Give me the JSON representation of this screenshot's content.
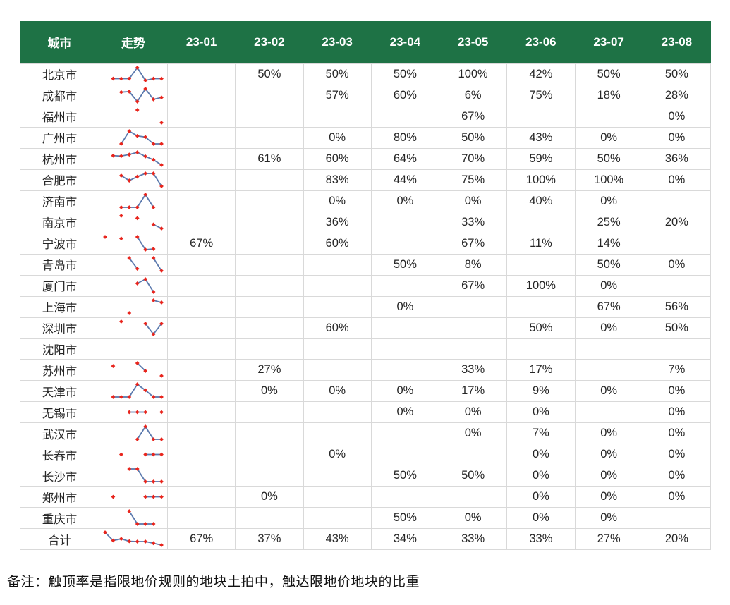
{
  "table": {
    "columns": [
      "城市",
      "走势",
      "23-01",
      "23-02",
      "23-03",
      "23-04",
      "23-05",
      "23-06",
      "23-07",
      "23-08"
    ],
    "rows": [
      {
        "city": "北京市",
        "values": [
          "",
          "50%",
          "50%",
          "50%",
          "100%",
          "42%",
          "50%",
          "50%"
        ]
      },
      {
        "city": "成都市",
        "values": [
          "",
          "",
          "57%",
          "60%",
          "6%",
          "75%",
          "18%",
          "28%"
        ]
      },
      {
        "city": "福州市",
        "values": [
          "",
          "",
          "",
          "",
          "67%",
          "",
          "",
          "0%"
        ]
      },
      {
        "city": "广州市",
        "values": [
          "",
          "",
          "0%",
          "80%",
          "50%",
          "43%",
          "0%",
          "0%"
        ]
      },
      {
        "city": "杭州市",
        "values": [
          "",
          "61%",
          "60%",
          "64%",
          "70%",
          "59%",
          "50%",
          "36%"
        ]
      },
      {
        "city": "合肥市",
        "values": [
          "",
          "",
          "83%",
          "44%",
          "75%",
          "100%",
          "100%",
          "0%"
        ]
      },
      {
        "city": "济南市",
        "values": [
          "",
          "",
          "0%",
          "0%",
          "0%",
          "40%",
          "0%",
          ""
        ]
      },
      {
        "city": "南京市",
        "values": [
          "",
          "",
          "36%",
          "",
          "33%",
          "",
          "25%",
          "20%"
        ]
      },
      {
        "city": "宁波市",
        "values": [
          "67%",
          "",
          "60%",
          "",
          "67%",
          "11%",
          "14%",
          ""
        ]
      },
      {
        "city": "青岛市",
        "values": [
          "",
          "",
          "",
          "50%",
          "8%",
          "",
          "50%",
          "0%"
        ]
      },
      {
        "city": "厦门市",
        "values": [
          "",
          "",
          "",
          "",
          "67%",
          "100%",
          "0%",
          ""
        ]
      },
      {
        "city": "上海市",
        "values": [
          "",
          "",
          "",
          "0%",
          "",
          "",
          "67%",
          "56%"
        ]
      },
      {
        "city": "深圳市",
        "values": [
          "",
          "",
          "60%",
          "",
          "",
          "50%",
          "0%",
          "50%"
        ]
      },
      {
        "city": "沈阳市",
        "values": [
          "",
          "",
          "",
          "",
          "",
          "",
          "",
          ""
        ]
      },
      {
        "city": "苏州市",
        "values": [
          "",
          "27%",
          "",
          "",
          "33%",
          "17%",
          "",
          "7%"
        ]
      },
      {
        "city": "天津市",
        "values": [
          "",
          "0%",
          "0%",
          "0%",
          "17%",
          "9%",
          "0%",
          "0%"
        ]
      },
      {
        "city": "无锡市",
        "values": [
          "",
          "",
          "",
          "0%",
          "0%",
          "0%",
          "",
          "0%"
        ]
      },
      {
        "city": "武汉市",
        "values": [
          "",
          "",
          "",
          "",
          "0%",
          "7%",
          "0%",
          "0%"
        ]
      },
      {
        "city": "长春市",
        "values": [
          "",
          "",
          "0%",
          "",
          "",
          "0%",
          "0%",
          "0%"
        ]
      },
      {
        "city": "长沙市",
        "values": [
          "",
          "",
          "",
          "50%",
          "50%",
          "0%",
          "0%",
          "0%"
        ]
      },
      {
        "city": "郑州市",
        "values": [
          "",
          "0%",
          "",
          "",
          "",
          "0%",
          "0%",
          "0%"
        ]
      },
      {
        "city": "重庆市",
        "values": [
          "",
          "",
          "",
          "50%",
          "0%",
          "0%",
          "0%",
          ""
        ]
      },
      {
        "city": "合计",
        "values": [
          "67%",
          "37%",
          "43%",
          "34%",
          "33%",
          "33%",
          "27%",
          "20%"
        ]
      }
    ]
  },
  "note": "备注：触顶率是指限地价规则的地块土拍中，触达限地价地块的比重",
  "colors": {
    "header_bg": "#1E7245",
    "header_text": "#FFFFFF",
    "gridline": "#D9D9D9",
    "body_text": "#262626",
    "sparkline_line": "#5B79AD",
    "sparkline_marker": "#E8251D"
  },
  "chart_data": {
    "type": "table",
    "title": "",
    "columns": [
      "城市",
      "走势",
      "23-01",
      "23-02",
      "23-03",
      "23-04",
      "23-05",
      "23-06",
      "23-07",
      "23-08"
    ],
    "unit": "percent",
    "sparkline_note": "走势 column shows an 8-slot sparkline (months 23-01..23-08) of each row's values, per-row min-max y-scaling, gaps where no data",
    "rows": [
      {
        "city": "北京市",
        "values": [
          null,
          50,
          50,
          50,
          100,
          42,
          50,
          50
        ]
      },
      {
        "city": "成都市",
        "values": [
          null,
          null,
          57,
          60,
          6,
          75,
          18,
          28
        ]
      },
      {
        "city": "福州市",
        "values": [
          null,
          null,
          null,
          null,
          67,
          null,
          null,
          0
        ]
      },
      {
        "city": "广州市",
        "values": [
          null,
          null,
          0,
          80,
          50,
          43,
          0,
          0
        ]
      },
      {
        "city": "杭州市",
        "values": [
          null,
          61,
          60,
          64,
          70,
          59,
          50,
          36
        ]
      },
      {
        "city": "合肥市",
        "values": [
          null,
          null,
          83,
          44,
          75,
          100,
          100,
          0
        ]
      },
      {
        "city": "济南市",
        "values": [
          null,
          null,
          0,
          0,
          0,
          40,
          0,
          null
        ]
      },
      {
        "city": "南京市",
        "values": [
          null,
          null,
          36,
          null,
          33,
          null,
          25,
          20
        ]
      },
      {
        "city": "宁波市",
        "values": [
          67,
          null,
          60,
          null,
          67,
          11,
          14,
          null
        ]
      },
      {
        "city": "青岛市",
        "values": [
          null,
          null,
          null,
          50,
          8,
          null,
          50,
          0
        ]
      },
      {
        "city": "厦门市",
        "values": [
          null,
          null,
          null,
          null,
          67,
          100,
          0,
          null
        ]
      },
      {
        "city": "上海市",
        "values": [
          null,
          null,
          null,
          0,
          null,
          null,
          67,
          56
        ]
      },
      {
        "city": "深圳市",
        "values": [
          null,
          null,
          60,
          null,
          null,
          50,
          0,
          50
        ]
      },
      {
        "city": "沈阳市",
        "values": [
          null,
          null,
          null,
          null,
          null,
          null,
          null,
          null
        ]
      },
      {
        "city": "苏州市",
        "values": [
          null,
          27,
          null,
          null,
          33,
          17,
          null,
          7
        ]
      },
      {
        "city": "天津市",
        "values": [
          null,
          0,
          0,
          0,
          17,
          9,
          0,
          0
        ]
      },
      {
        "city": "无锡市",
        "values": [
          null,
          null,
          null,
          0,
          0,
          0,
          null,
          0
        ]
      },
      {
        "city": "武汉市",
        "values": [
          null,
          null,
          null,
          null,
          0,
          7,
          0,
          0
        ]
      },
      {
        "city": "长春市",
        "values": [
          null,
          null,
          0,
          null,
          null,
          0,
          0,
          0
        ]
      },
      {
        "city": "长沙市",
        "values": [
          null,
          null,
          null,
          50,
          50,
          0,
          0,
          0
        ]
      },
      {
        "city": "郑州市",
        "values": [
          null,
          0,
          null,
          null,
          null,
          0,
          0,
          0
        ]
      },
      {
        "city": "重庆市",
        "values": [
          null,
          null,
          null,
          50,
          0,
          0,
          0,
          null
        ]
      },
      {
        "city": "合计",
        "values": [
          67,
          37,
          43,
          34,
          33,
          33,
          27,
          20
        ]
      }
    ]
  }
}
